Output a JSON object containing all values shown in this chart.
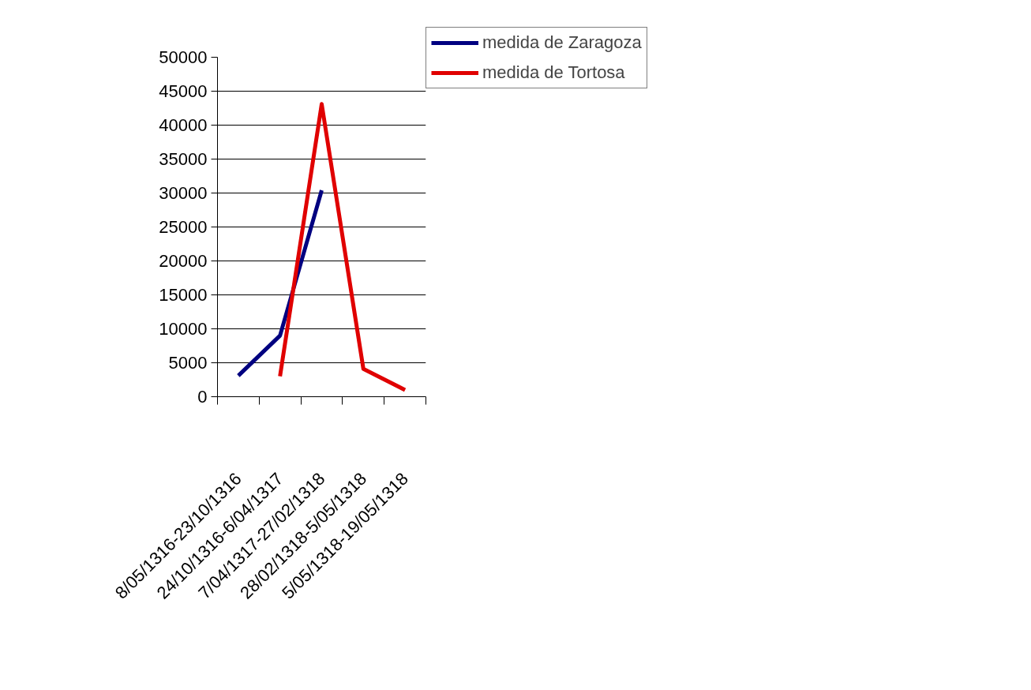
{
  "chart_data": {
    "type": "line",
    "categories": [
      "8/05/1316-23/10/1316",
      "24/10/1316-6/04/1317",
      "7/04/1317-27/02/1318",
      "28/02/1318-5/05/1318",
      "5/05/1318-19/05/1318"
    ],
    "series": [
      {
        "name": "medida de Zaragoza",
        "color": "#000080",
        "values": [
          3100,
          9000,
          30400,
          null,
          null
        ]
      },
      {
        "name": "medida de Tortosa",
        "color": "#e00000",
        "values": [
          null,
          3000,
          43100,
          4100,
          1000
        ]
      }
    ],
    "ylim": [
      0,
      50000
    ],
    "yticks": [
      0,
      5000,
      10000,
      15000,
      20000,
      25000,
      30000,
      35000,
      40000,
      45000,
      50000
    ],
    "grid": "y",
    "legend": "right",
    "marker": "none",
    "line_style": "solid"
  }
}
